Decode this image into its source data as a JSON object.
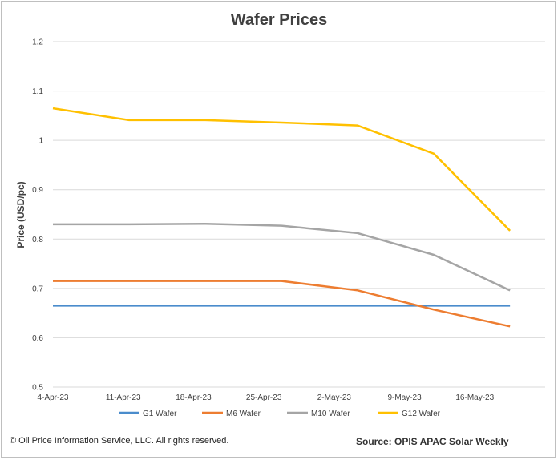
{
  "chart_data": {
    "type": "line",
    "title": "Wafer Prices",
    "xlabel": "",
    "ylabel": "Price (USD/pc)",
    "categories": [
      "4-Apr-23",
      "11-Apr-23",
      "18-Apr-23",
      "25-Apr-23",
      "2-May-23",
      "9-May-23",
      "16-May-23"
    ],
    "ylim": [
      0.5,
      1.2
    ],
    "yticks": [
      "0.5",
      "0.6",
      "0.7",
      "0.8",
      "0.9",
      "1",
      "1.1",
      "1.2"
    ],
    "grid": true,
    "legend_position": "bottom",
    "series": [
      {
        "name": "G1 Wafer",
        "color": "#4a8ccc",
        "values": [
          0.665,
          0.665,
          0.665,
          0.665,
          0.665,
          0.665,
          0.665
        ]
      },
      {
        "name": "M6 Wafer",
        "color": "#ed7d31",
        "values": [
          0.715,
          0.715,
          0.715,
          0.715,
          0.696,
          0.657,
          0.623
        ]
      },
      {
        "name": "M10 Wafer",
        "color": "#a5a5a5",
        "values": [
          0.83,
          0.83,
          0.831,
          0.827,
          0.812,
          0.768,
          0.696
        ]
      },
      {
        "name": "G12 Wafer",
        "color": "#ffc000",
        "values": [
          1.065,
          1.041,
          1.041,
          1.036,
          1.03,
          0.973,
          0.817
        ]
      }
    ]
  },
  "footer": {
    "copyright": "© Oil Price Information Service, LLC.  All rights reserved.",
    "source": "Source: OPIS APAC Solar Weekly"
  }
}
